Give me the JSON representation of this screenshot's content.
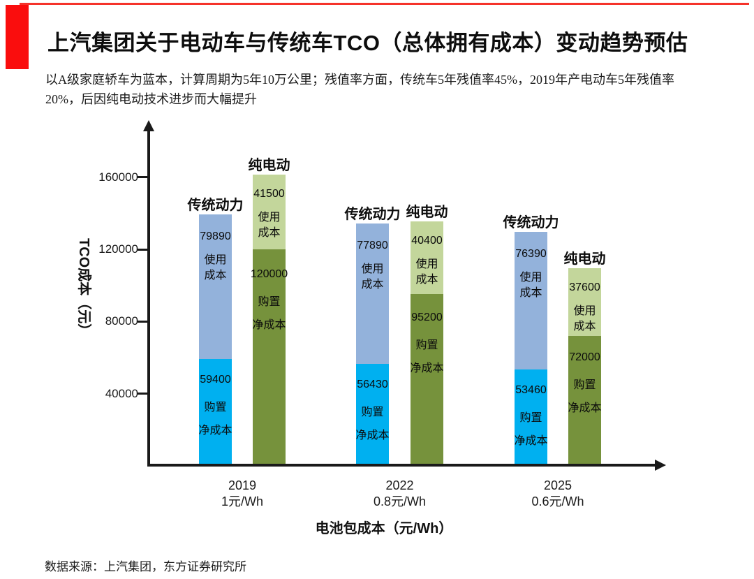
{
  "page": {
    "title": "上汽集团关于电动车与传统车TCO（总体拥有成本）变动趋势预估",
    "subtitle_line1": "以A级家庭轿车为蓝本，计算周期为5年10万公里；残值率方面，传统车5年残值率45%，2019年产电动车5年残值率",
    "subtitle_line2": "20%，后因纯电动技术进步而大幅提升",
    "source": "数据来源：上汽集团，东方证券研究所",
    "accent_red_block": "#FA0D0D",
    "accent_red_rule": "#F5332B"
  },
  "chart_data": {
    "type": "bar",
    "stacked": true,
    "title": "",
    "xlabel": "电池包成本（元/Wh）",
    "ylabel": "TCO成本（元）",
    "ylim": [
      0,
      175000
    ],
    "yticks": [
      40000,
      80000,
      120000,
      160000
    ],
    "grid": false,
    "legend": "labels-above-bars",
    "series_colors": {
      "traditional_purchase": "#00B0F0",
      "traditional_usage": "#93B2DB",
      "ev_purchase": "#76923C",
      "ev_usage": "#C3D69B"
    },
    "segment_labels": {
      "purchase": [
        "购置",
        "净成本"
      ],
      "usage": [
        "使用",
        "成本"
      ]
    },
    "groups": [
      {
        "year": "2019",
        "battery_cost": "1元/Wh",
        "bars": [
          {
            "name": "传统动力",
            "type": "traditional",
            "purchase": 59400,
            "usage": 79890
          },
          {
            "name": "纯电动",
            "type": "ev",
            "purchase": 120000,
            "usage": 41500
          }
        ]
      },
      {
        "year": "2022",
        "battery_cost": "0.8元/Wh",
        "bars": [
          {
            "name": "传统动力",
            "type": "traditional",
            "purchase": 56430,
            "usage": 77890
          },
          {
            "name": "纯电动",
            "type": "ev",
            "purchase": 95200,
            "usage": 40400
          }
        ]
      },
      {
        "year": "2025",
        "battery_cost": "0.6元/Wh",
        "bars": [
          {
            "name": "传统动力",
            "type": "traditional",
            "purchase": 53460,
            "usage": 76390
          },
          {
            "name": "纯电动",
            "type": "ev",
            "purchase": 72000,
            "usage": 37600
          }
        ]
      }
    ]
  }
}
